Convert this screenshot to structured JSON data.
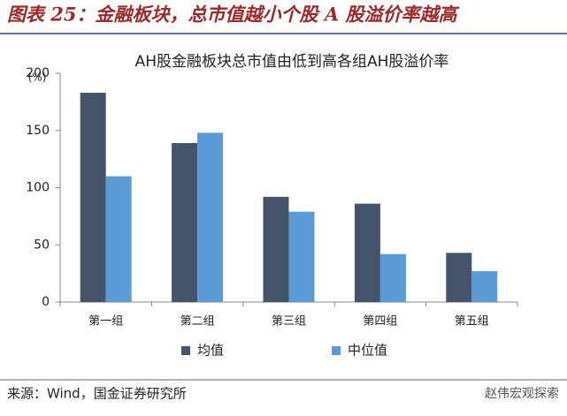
{
  "header": {
    "title": "图表 25：金融板块，总市值越小个股 A 股溢价率越高"
  },
  "chart_data": {
    "type": "bar",
    "title": "AH股金融板块总市值由低到高各组AH股溢价率",
    "y_label": "(%)",
    "categories": [
      "第一组",
      "第二组",
      "第三组",
      "第四组",
      "第五组"
    ],
    "series": [
      {
        "name": "均值",
        "color": "#44546a",
        "values": [
          183,
          139,
          92,
          86,
          43
        ]
      },
      {
        "name": "中位值",
        "color": "#5b9bd5",
        "values": [
          110,
          148,
          79,
          42,
          27
        ]
      }
    ],
    "ylim": [
      0,
      200
    ],
    "yticks": [
      0,
      50,
      100,
      150,
      200
    ],
    "grid": false,
    "legend": "bottom"
  },
  "source": "来源：Wind，国金证券研究所",
  "watermark": "赵伟宏观探索"
}
